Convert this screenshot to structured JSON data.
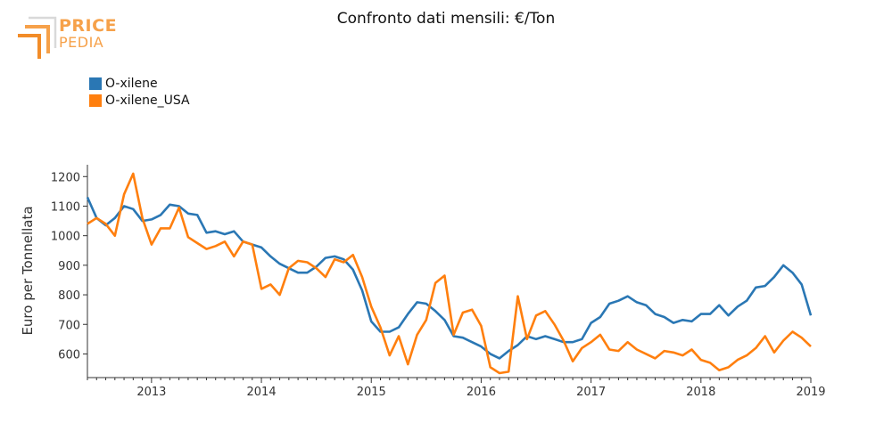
{
  "logo": {
    "line1": "PRICE",
    "line2": "PEDIA"
  },
  "colors": {
    "series1": "#2a77b4",
    "series2": "#ff7f0e",
    "axis": "#333333"
  },
  "chart_data": {
    "type": "line",
    "title": "Confronto dati mensili: €/Ton",
    "ylabel": "Euro per Tonnellata",
    "xlabel": "",
    "ylim": [
      520,
      1240
    ],
    "xlim": [
      "2012-06",
      "2019-01"
    ],
    "yticks": [
      600,
      700,
      800,
      900,
      1000,
      1100,
      1200
    ],
    "xticks": [
      "2013",
      "2014",
      "2015",
      "2016",
      "2017",
      "2018",
      "2019"
    ],
    "grid": false,
    "legend": "top-left",
    "x": [
      "2012-06",
      "2012-07",
      "2012-08",
      "2012-09",
      "2012-10",
      "2012-11",
      "2012-12",
      "2013-01",
      "2013-02",
      "2013-03",
      "2013-04",
      "2013-05",
      "2013-06",
      "2013-07",
      "2013-08",
      "2013-09",
      "2013-10",
      "2013-11",
      "2013-12",
      "2014-01",
      "2014-02",
      "2014-03",
      "2014-04",
      "2014-05",
      "2014-06",
      "2014-07",
      "2014-08",
      "2014-09",
      "2014-10",
      "2014-11",
      "2014-12",
      "2015-01",
      "2015-02",
      "2015-03",
      "2015-04",
      "2015-05",
      "2015-06",
      "2015-07",
      "2015-08",
      "2015-09",
      "2015-10",
      "2015-11",
      "2015-12",
      "2016-01",
      "2016-02",
      "2016-03",
      "2016-04",
      "2016-05",
      "2016-06",
      "2016-07",
      "2016-08",
      "2016-09",
      "2016-10",
      "2016-11",
      "2016-12",
      "2017-01",
      "2017-02",
      "2017-03",
      "2017-04",
      "2017-05",
      "2017-06",
      "2017-07",
      "2017-08",
      "2017-09",
      "2017-10",
      "2017-11",
      "2017-12",
      "2018-01",
      "2018-02",
      "2018-03",
      "2018-04",
      "2018-05",
      "2018-06",
      "2018-07",
      "2018-08",
      "2018-09",
      "2018-10",
      "2018-11",
      "2018-12",
      "2019-01"
    ],
    "series": [
      {
        "name": "O-xilene",
        "values": [
          1130,
          1060,
          1035,
          1060,
          1100,
          1090,
          1050,
          1055,
          1070,
          1105,
          1100,
          1075,
          1070,
          1010,
          1015,
          1005,
          1015,
          980,
          970,
          960,
          930,
          905,
          890,
          875,
          875,
          895,
          925,
          930,
          920,
          885,
          815,
          710,
          675,
          675,
          690,
          735,
          775,
          770,
          745,
          715,
          660,
          655,
          640,
          625,
          600,
          585,
          610,
          630,
          660,
          650,
          660,
          650,
          640,
          640,
          650,
          705,
          725,
          770,
          780,
          795,
          775,
          765,
          735,
          725,
          705,
          715,
          710,
          735,
          735,
          765,
          730,
          760,
          780,
          825,
          830,
          860,
          900,
          875,
          835,
          730
        ]
      },
      {
        "name": "O-xilene_USA",
        "values": [
          1040,
          1060,
          1040,
          1000,
          1140,
          1210,
          1060,
          970,
          1025,
          1025,
          1095,
          995,
          975,
          955,
          965,
          980,
          930,
          980,
          970,
          820,
          835,
          800,
          890,
          915,
          910,
          890,
          860,
          920,
          910,
          935,
          860,
          760,
          690,
          595,
          660,
          565,
          665,
          715,
          840,
          865,
          665,
          740,
          750,
          695,
          555,
          535,
          540,
          795,
          650,
          730,
          745,
          700,
          645,
          575,
          620,
          640,
          665,
          615,
          610,
          640,
          615,
          600,
          585,
          610,
          605,
          595,
          615,
          580,
          570,
          545,
          555,
          580,
          595,
          620,
          660,
          605,
          645,
          675,
          655,
          625
        ]
      }
    ]
  }
}
